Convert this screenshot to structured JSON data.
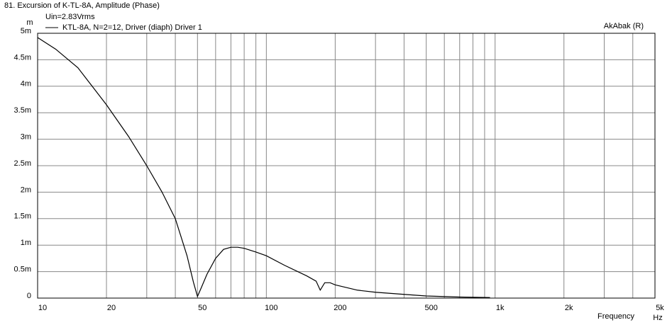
{
  "chart_data": {
    "type": "line",
    "title": "81. Excursion of K-TL-8A, Amplitude (Phase)",
    "subtitle": "Uin=2.83Vrms",
    "watermark": "AkAbak (R)",
    "y_unit": "m",
    "x_label": "Frequency",
    "x_unit": "Hz",
    "x_scale": "log",
    "grid": true,
    "xlim": [
      10,
      5000
    ],
    "xticks": [
      10,
      20,
      50,
      100,
      200,
      500,
      {
        "value": 1000,
        "label": "1k"
      },
      {
        "value": 2000,
        "label": "2k"
      },
      {
        "value": 5000,
        "label": "5k"
      }
    ],
    "minor_xticks": [
      30,
      40,
      60,
      70,
      80,
      90,
      300,
      400,
      600,
      700,
      800,
      900,
      3000,
      4000
    ],
    "ylim": [
      0,
      0.005
    ],
    "yticks": [
      0,
      {
        "value": 0.0005,
        "label": "0.5m"
      },
      {
        "value": 0.001,
        "label": "1m"
      },
      {
        "value": 0.0015,
        "label": "1.5m"
      },
      {
        "value": 0.002,
        "label": "2m"
      },
      {
        "value": 0.0025,
        "label": "2.5m"
      },
      {
        "value": 0.003,
        "label": "3m"
      },
      {
        "value": 0.0035,
        "label": "3.5m"
      },
      {
        "value": 0.004,
        "label": "4m"
      },
      {
        "value": 0.0045,
        "label": "4.5m"
      },
      {
        "value": 0.005,
        "label": "5m"
      }
    ],
    "x": [
      10,
      12,
      15,
      20,
      25,
      30,
      35,
      40,
      45,
      48,
      50,
      52,
      55,
      60,
      65,
      70,
      75,
      80,
      90,
      100,
      120,
      150,
      165,
      172,
      180,
      190,
      200,
      250,
      300,
      400,
      500,
      700,
      950
    ],
    "series": [
      {
        "name": "KTL-8A, N=2=12, Driver (diaph) Driver 1",
        "color": "#000000",
        "values": [
          0.00492,
          0.0047,
          0.00435,
          0.00365,
          0.00305,
          0.0025,
          0.002,
          0.0015,
          0.0008,
          0.0003,
          3e-05,
          0.0002,
          0.00045,
          0.00075,
          0.00092,
          0.00096,
          0.00096,
          0.00094,
          0.00087,
          0.0008,
          0.00062,
          0.00042,
          0.00032,
          0.00015,
          0.00029,
          0.00029,
          0.00025,
          0.00015,
          0.00011,
          7e-05,
          4e-05,
          2e-05,
          1e-05
        ]
      }
    ]
  }
}
